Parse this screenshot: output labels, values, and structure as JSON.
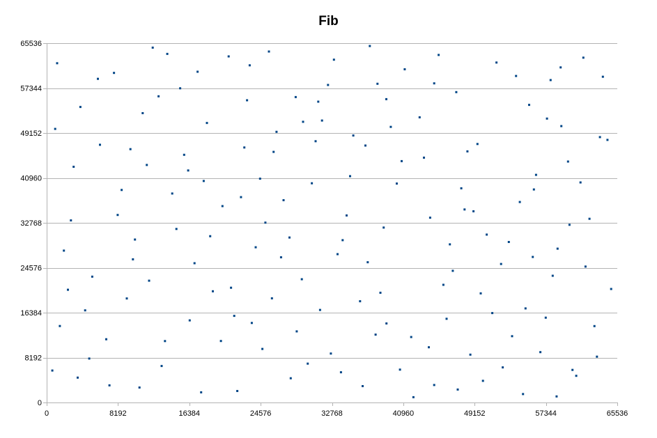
{
  "chart_data": {
    "type": "scatter",
    "title": "Fib",
    "xlabel": "",
    "ylabel": "",
    "xlim": [
      0,
      65536
    ],
    "ylim": [
      0,
      65536
    ],
    "x_ticks": [
      0,
      8192,
      16384,
      24576,
      32768,
      40960,
      49152,
      57344,
      65536
    ],
    "y_ticks": [
      0,
      8192,
      16384,
      24576,
      32768,
      40960,
      49152,
      57344,
      65536
    ],
    "x_tick_labels": [
      "0",
      "8192",
      "16384",
      "24576",
      "32768",
      "40960",
      "49152",
      "57344",
      "65536"
    ],
    "y_tick_labels": [
      "0",
      "8192",
      "16384",
      "24576",
      "32768",
      "40960",
      "49152",
      "57344",
      "65536"
    ],
    "grid": "horizontal",
    "legend": "none",
    "marker_color": "#004586",
    "series": [
      {
        "points": [
          [
            1203,
            61877
          ],
          [
            13587,
            11208
          ],
          [
            29302,
            22479
          ],
          [
            40212,
            39931
          ],
          [
            53456,
            12088
          ],
          [
            6125,
            47005
          ],
          [
            20898,
            63121
          ],
          [
            33804,
            5517
          ],
          [
            46310,
            28840
          ],
          [
            59111,
            50406
          ],
          [
            2786,
            33217
          ],
          [
            17744,
            1860
          ],
          [
            26065,
            45709
          ],
          [
            37991,
            58133
          ],
          [
            49852,
            19903
          ],
          [
            63202,
            8355
          ],
          [
            9904,
            26118
          ],
          [
            22315,
            37460
          ],
          [
            31188,
            54872
          ],
          [
            44506,
            3188
          ],
          [
            56207,
            41523
          ],
          [
            4417,
            16799
          ],
          [
            15333,
            57310
          ],
          [
            27890,
            30094
          ],
          [
            39027,
            14411
          ],
          [
            51663,
            62003
          ],
          [
            61888,
            24790
          ],
          [
            11502,
            43316
          ],
          [
            24777,
            9762
          ],
          [
            35214,
            48690
          ],
          [
            47995,
            35203
          ],
          [
            58566,
            1104
          ],
          [
            7730,
            60108
          ],
          [
            19087,
            20277
          ],
          [
            30456,
            39980
          ],
          [
            42833,
            52011
          ],
          [
            54999,
            17155
          ],
          [
            650,
            5832
          ],
          [
            14901,
            31650
          ],
          [
            25528,
            64009
          ],
          [
            36870,
            25577
          ],
          [
            48320,
            45802
          ],
          [
            60045,
            32412
          ],
          [
            3870,
            53904
          ],
          [
            16254,
            42317
          ],
          [
            28719,
            12968
          ],
          [
            41125,
            60771
          ],
          [
            52380,
            6402
          ],
          [
            64411,
            47891
          ],
          [
            10655,
            2733
          ],
          [
            23010,
            55126
          ],
          [
            34451,
            34108
          ],
          [
            45560,
            21466
          ],
          [
            57880,
            58801
          ],
          [
            5230,
            22946
          ],
          [
            18402,
            50987
          ],
          [
            29987,
            7093
          ],
          [
            40766,
            44025
          ],
          [
            53077,
            29281
          ],
          [
            62910,
            13930
          ],
          [
            8611,
            38765
          ],
          [
            21540,
            15802
          ],
          [
            32990,
            62530
          ],
          [
            43888,
            10071
          ],
          [
            55412,
            54287
          ],
          [
            1980,
            27703
          ],
          [
            13200,
            6650
          ],
          [
            26401,
            49370
          ],
          [
            38702,
            31900
          ],
          [
            50110,
            3950
          ],
          [
            61307,
            40133
          ],
          [
            12177,
            64720
          ],
          [
            24003,
            28311
          ],
          [
            35995,
            18466
          ],
          [
            47040,
            56611
          ],
          [
            58120,
            23110
          ],
          [
            6840,
            11530
          ],
          [
            20188,
            35820
          ],
          [
            31624,
            51420
          ],
          [
            42121,
            970
          ],
          [
            54340,
            36570
          ],
          [
            63877,
            59420
          ],
          [
            9199,
            18980
          ],
          [
            22701,
            46505
          ],
          [
            33409,
            27050
          ],
          [
            45021,
            63388
          ],
          [
            56700,
            9188
          ],
          [
            3099,
            42988
          ],
          [
            16980,
            25400
          ],
          [
            28030,
            4422
          ],
          [
            39520,
            50266
          ],
          [
            51180,
            16310
          ],
          [
            62340,
            33510
          ],
          [
            11030,
            52770
          ],
          [
            23560,
            14502
          ],
          [
            34850,
            41280
          ],
          [
            46640,
            24020
          ],
          [
            59030,
            61120
          ],
          [
            4890,
            8010
          ],
          [
            17330,
            60333
          ],
          [
            27210,
            36901
          ],
          [
            38330,
            20015
          ],
          [
            49480,
            47140
          ],
          [
            60820,
            4870
          ],
          [
            10140,
            29720
          ],
          [
            21890,
            2101
          ],
          [
            32310,
            57910
          ],
          [
            44040,
            33712
          ],
          [
            55830,
            26540
          ],
          [
            980,
            49901
          ],
          [
            14420,
            38110
          ],
          [
            25870,
            19001
          ],
          [
            37110,
            65010
          ],
          [
            48660,
            8720
          ],
          [
            59880,
            43950
          ],
          [
            7209,
            3120
          ],
          [
            18780,
            30333
          ],
          [
            30890,
            47650
          ],
          [
            41870,
            11940
          ],
          [
            53910,
            59560
          ],
          [
            64830,
            20700
          ],
          [
            12850,
            55840
          ],
          [
            24510,
            40820
          ],
          [
            36290,
            2980
          ],
          [
            47620,
            39070
          ],
          [
            57320,
            15470
          ],
          [
            2440,
            20560
          ],
          [
            15790,
            45180
          ],
          [
            26920,
            26480
          ],
          [
            39010,
            55320
          ],
          [
            50540,
            30620
          ],
          [
            61640,
            62890
          ],
          [
            8150,
            34200
          ],
          [
            20010,
            11220
          ],
          [
            31400,
            16880
          ],
          [
            43330,
            44660
          ],
          [
            54710,
            1540
          ],
          [
            5880,
            59030
          ],
          [
            16430,
            14980
          ],
          [
            29450,
            51200
          ],
          [
            40580,
            6000
          ],
          [
            52190,
            25260
          ],
          [
            63540,
            48400
          ],
          [
            11760,
            22210
          ],
          [
            23320,
            61500
          ],
          [
            33990,
            29610
          ],
          [
            45930,
            15260
          ],
          [
            57460,
            51780
          ],
          [
            3560,
            4530
          ],
          [
            18040,
            40400
          ],
          [
            28600,
            55710
          ],
          [
            37780,
            12380
          ],
          [
            49020,
            34870
          ],
          [
            60390,
            5950
          ],
          [
            9620,
            46200
          ],
          [
            21170,
            20930
          ],
          [
            32640,
            8930
          ],
          [
            44510,
            58210
          ],
          [
            55960,
            38850
          ],
          [
            1510,
            13950
          ],
          [
            13850,
            63580
          ],
          [
            25120,
            32800
          ],
          [
            36610,
            46870
          ],
          [
            47210,
            2360
          ],
          [
            58680,
            28060
          ]
        ]
      }
    ]
  }
}
